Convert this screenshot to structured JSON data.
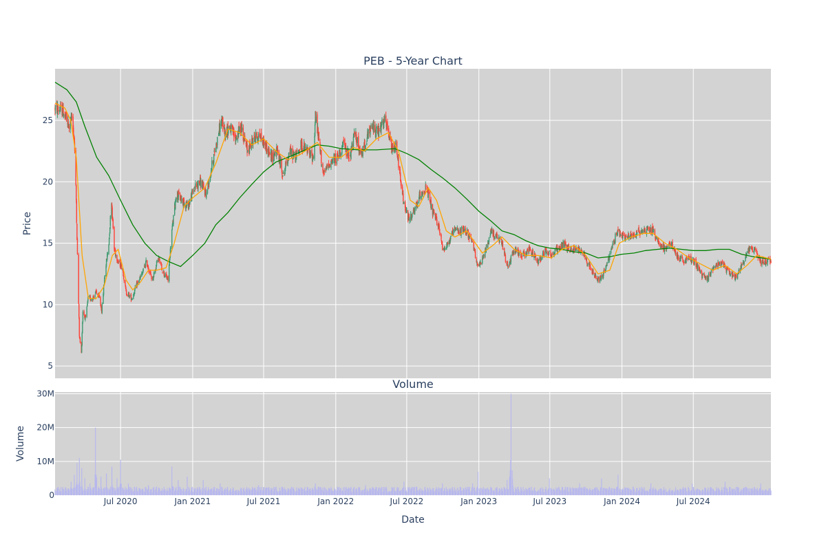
{
  "chart_data": [
    {
      "type": "candlestick",
      "title": "PEB - 5-Year Chart",
      "xlabel": "",
      "ylabel": "Price",
      "ylim": [
        4.0,
        29.2
      ],
      "xlim": [
        "2020-01-16",
        "2025-01-15"
      ],
      "yticks": [
        5,
        10,
        15,
        20,
        25
      ],
      "xtick_dates": [
        "2020-07-01",
        "2021-01-01",
        "2021-07-01",
        "2022-01-01",
        "2022-07-01",
        "2023-01-01",
        "2023-07-01",
        "2024-01-01",
        "2024-07-01"
      ],
      "grid": true,
      "background": "#d3d3d3",
      "colors": {
        "up": "#3d9970",
        "down": "#ff4136",
        "ma_short": "#ffa500",
        "ma_long": "#008000"
      },
      "price_path": [
        [
          "2020-01-16",
          26.0
        ],
        [
          "2020-02-05",
          25.8
        ],
        [
          "2020-02-20",
          24.5
        ],
        [
          "2020-02-28",
          25.2
        ],
        [
          "2020-03-05",
          23.5
        ],
        [
          "2020-03-10",
          18.5
        ],
        [
          "2020-03-13",
          14.0
        ],
        [
          "2020-03-18",
          7.5
        ],
        [
          "2020-03-23",
          6.0
        ],
        [
          "2020-03-27",
          9.5
        ],
        [
          "2020-04-03",
          8.8
        ],
        [
          "2020-04-09",
          10.5
        ],
        [
          "2020-04-20",
          10.5
        ],
        [
          "2020-04-30",
          11.0
        ],
        [
          "2020-05-08",
          10.5
        ],
        [
          "2020-05-14",
          9.5
        ],
        [
          "2020-05-22",
          12.5
        ],
        [
          "2020-06-01",
          15.0
        ],
        [
          "2020-06-08",
          18.5
        ],
        [
          "2020-06-15",
          14.5
        ],
        [
          "2020-06-25",
          13.5
        ],
        [
          "2020-07-06",
          13.0
        ],
        [
          "2020-07-15",
          11.0
        ],
        [
          "2020-07-30",
          10.5
        ],
        [
          "2020-08-10",
          11.5
        ],
        [
          "2020-08-25",
          12.5
        ],
        [
          "2020-09-05",
          13.5
        ],
        [
          "2020-09-20",
          12.0
        ],
        [
          "2020-10-05",
          13.8
        ],
        [
          "2020-10-20",
          12.5
        ],
        [
          "2020-10-30",
          12.0
        ],
        [
          "2020-11-09",
          16.0
        ],
        [
          "2020-11-20",
          19.0
        ],
        [
          "2020-12-05",
          18.5
        ],
        [
          "2020-12-20",
          18.0
        ],
        [
          "2021-01-05",
          19.5
        ],
        [
          "2021-01-20",
          20.0
        ],
        [
          "2021-02-05",
          19.0
        ],
        [
          "2021-02-20",
          21.5
        ],
        [
          "2021-03-05",
          23.5
        ],
        [
          "2021-03-15",
          25.0
        ],
        [
          "2021-03-25",
          24.0
        ],
        [
          "2021-04-05",
          24.5
        ],
        [
          "2021-04-20",
          23.5
        ],
        [
          "2021-05-05",
          24.5
        ],
        [
          "2021-05-20",
          22.5
        ],
        [
          "2021-06-05",
          23.5
        ],
        [
          "2021-06-20",
          23.8
        ],
        [
          "2021-07-05",
          23.0
        ],
        [
          "2021-07-20",
          22.0
        ],
        [
          "2021-08-05",
          22.5
        ],
        [
          "2021-08-20",
          20.5
        ],
        [
          "2021-09-05",
          22.5
        ],
        [
          "2021-09-20",
          22.0
        ],
        [
          "2021-10-05",
          23.0
        ],
        [
          "2021-10-20",
          22.5
        ],
        [
          "2021-11-05",
          22.0
        ],
        [
          "2021-11-10",
          25.5
        ],
        [
          "2021-11-20",
          23.0
        ],
        [
          "2021-12-01",
          20.5
        ],
        [
          "2021-12-15",
          21.5
        ],
        [
          "2022-01-05",
          22.0
        ],
        [
          "2022-01-20",
          23.0
        ],
        [
          "2022-02-05",
          22.0
        ],
        [
          "2022-02-20",
          24.0
        ],
        [
          "2022-03-05",
          22.0
        ],
        [
          "2022-03-20",
          23.5
        ],
        [
          "2022-04-05",
          24.5
        ],
        [
          "2022-04-20",
          24.0
        ],
        [
          "2022-05-05",
          25.0
        ],
        [
          "2022-05-15",
          24.0
        ],
        [
          "2022-05-25",
          22.5
        ],
        [
          "2022-06-05",
          23.0
        ],
        [
          "2022-06-15",
          20.0
        ],
        [
          "2022-06-25",
          18.0
        ],
        [
          "2022-07-05",
          17.0
        ],
        [
          "2022-07-20",
          17.5
        ],
        [
          "2022-08-05",
          19.0
        ],
        [
          "2022-08-20",
          19.5
        ],
        [
          "2022-09-05",
          17.5
        ],
        [
          "2022-09-20",
          16.5
        ],
        [
          "2022-10-01",
          14.5
        ],
        [
          "2022-10-15",
          15.0
        ],
        [
          "2022-10-30",
          16.0
        ],
        [
          "2022-11-15",
          16.0
        ],
        [
          "2022-11-30",
          16.0
        ],
        [
          "2022-12-15",
          15.0
        ],
        [
          "2023-01-01",
          13.0
        ],
        [
          "2023-01-15",
          14.0
        ],
        [
          "2023-02-01",
          16.0
        ],
        [
          "2023-02-15",
          15.5
        ],
        [
          "2023-03-01",
          15.0
        ],
        [
          "2023-03-15",
          13.0
        ],
        [
          "2023-04-01",
          14.5
        ],
        [
          "2023-04-20",
          14.0
        ],
        [
          "2023-05-10",
          14.5
        ],
        [
          "2023-06-01",
          13.5
        ],
        [
          "2023-06-20",
          14.5
        ],
        [
          "2023-07-05",
          14.0
        ],
        [
          "2023-07-20",
          14.5
        ],
        [
          "2023-08-05",
          15.0
        ],
        [
          "2023-08-20",
          14.5
        ],
        [
          "2023-09-05",
          14.5
        ],
        [
          "2023-09-20",
          14.5
        ],
        [
          "2023-10-05",
          13.5
        ],
        [
          "2023-10-20",
          12.5
        ],
        [
          "2023-11-01",
          12.0
        ],
        [
          "2023-11-15",
          12.5
        ],
        [
          "2023-12-01",
          14.0
        ],
        [
          "2023-12-20",
          16.0
        ],
        [
          "2024-01-05",
          15.5
        ],
        [
          "2024-01-20",
          15.5
        ],
        [
          "2024-02-05",
          15.8
        ],
        [
          "2024-02-20",
          16.0
        ],
        [
          "2024-03-05",
          16.2
        ],
        [
          "2024-03-20",
          16.0
        ],
        [
          "2024-04-05",
          15.0
        ],
        [
          "2024-04-20",
          14.5
        ],
        [
          "2024-05-05",
          15.0
        ],
        [
          "2024-05-20",
          14.0
        ],
        [
          "2024-06-05",
          13.5
        ],
        [
          "2024-06-20",
          13.8
        ],
        [
          "2024-07-05",
          13.5
        ],
        [
          "2024-07-20",
          12.5
        ],
        [
          "2024-08-05",
          12.0
        ],
        [
          "2024-08-20",
          13.0
        ],
        [
          "2024-09-05",
          13.5
        ],
        [
          "2024-09-20",
          13.0
        ],
        [
          "2024-10-05",
          12.5
        ],
        [
          "2024-10-20",
          12.2
        ],
        [
          "2024-11-05",
          13.5
        ],
        [
          "2024-11-20",
          14.5
        ],
        [
          "2024-12-05",
          14.5
        ],
        [
          "2024-12-20",
          13.5
        ],
        [
          "2025-01-15",
          13.6
        ]
      ],
      "ma_short": [
        [
          "2020-01-16",
          26.4
        ],
        [
          "2020-02-10",
          26.0
        ],
        [
          "2020-02-25",
          25.0
        ],
        [
          "2020-03-10",
          22.0
        ],
        [
          "2020-03-25",
          14.0
        ],
        [
          "2020-04-10",
          10.5
        ],
        [
          "2020-04-30",
          10.5
        ],
        [
          "2020-05-20",
          11.5
        ],
        [
          "2020-06-10",
          14.0
        ],
        [
          "2020-06-25",
          14.5
        ],
        [
          "2020-07-15",
          12.0
        ],
        [
          "2020-08-01",
          11.2
        ],
        [
          "2020-08-20",
          11.8
        ],
        [
          "2020-09-10",
          12.8
        ],
        [
          "2020-10-01",
          12.8
        ],
        [
          "2020-10-25",
          13.0
        ],
        [
          "2020-11-15",
          15.0
        ],
        [
          "2020-12-10",
          18.0
        ],
        [
          "2021-01-05",
          18.8
        ],
        [
          "2021-02-01",
          19.5
        ],
        [
          "2021-03-01",
          21.5
        ],
        [
          "2021-04-01",
          24.3
        ],
        [
          "2021-05-01",
          24.0
        ],
        [
          "2021-06-01",
          23.0
        ],
        [
          "2021-07-01",
          23.5
        ],
        [
          "2021-08-01",
          22.5
        ],
        [
          "2021-09-01",
          21.8
        ],
        [
          "2021-10-01",
          22.2
        ],
        [
          "2021-11-15",
          23.2
        ],
        [
          "2021-12-15",
          22.0
        ],
        [
          "2022-01-15",
          22.0
        ],
        [
          "2022-02-15",
          22.8
        ],
        [
          "2022-03-15",
          22.5
        ],
        [
          "2022-04-15",
          23.5
        ],
        [
          "2022-05-15",
          24.0
        ],
        [
          "2022-06-10",
          22.5
        ],
        [
          "2022-07-10",
          18.5
        ],
        [
          "2022-08-01",
          18.0
        ],
        [
          "2022-08-25",
          19.5
        ],
        [
          "2022-09-15",
          18.5
        ],
        [
          "2022-10-10",
          16.0
        ],
        [
          "2022-11-01",
          15.5
        ],
        [
          "2022-12-01",
          16.0
        ],
        [
          "2023-01-10",
          14.2
        ],
        [
          "2023-02-05",
          14.8
        ],
        [
          "2023-03-01",
          15.5
        ],
        [
          "2023-04-01",
          14.5
        ],
        [
          "2023-05-01",
          14.0
        ],
        [
          "2023-06-01",
          14.0
        ],
        [
          "2023-07-05",
          13.8
        ],
        [
          "2023-08-01",
          14.5
        ],
        [
          "2023-09-01",
          14.8
        ],
        [
          "2023-10-01",
          14.0
        ],
        [
          "2023-11-01",
          12.5
        ],
        [
          "2023-12-01",
          12.8
        ],
        [
          "2023-12-25",
          15.0
        ],
        [
          "2024-01-25",
          15.5
        ],
        [
          "2024-02-25",
          15.8
        ],
        [
          "2024-03-20",
          15.8
        ],
        [
          "2024-04-20",
          15.0
        ],
        [
          "2024-05-20",
          14.5
        ],
        [
          "2024-06-20",
          13.8
        ],
        [
          "2024-07-20",
          13.3
        ],
        [
          "2024-08-20",
          12.8
        ],
        [
          "2024-09-20",
          13.2
        ],
        [
          "2024-10-20",
          12.5
        ],
        [
          "2024-11-15",
          13.2
        ],
        [
          "2024-12-10",
          14.0
        ],
        [
          "2025-01-15",
          13.7
        ]
      ],
      "ma_long": [
        [
          "2020-01-16",
          28.1
        ],
        [
          "2020-02-15",
          27.5
        ],
        [
          "2020-03-10",
          26.5
        ],
        [
          "2020-04-01",
          24.5
        ],
        [
          "2020-05-01",
          22.0
        ],
        [
          "2020-06-01",
          20.5
        ],
        [
          "2020-07-01",
          18.5
        ],
        [
          "2020-08-01",
          16.5
        ],
        [
          "2020-09-01",
          15.0
        ],
        [
          "2020-10-01",
          14.0
        ],
        [
          "2020-11-01",
          13.5
        ],
        [
          "2020-12-01",
          13.1
        ],
        [
          "2021-01-01",
          14.0
        ],
        [
          "2021-02-01",
          15.0
        ],
        [
          "2021-03-01",
          16.5
        ],
        [
          "2021-04-01",
          17.5
        ],
        [
          "2021-05-01",
          18.7
        ],
        [
          "2021-06-01",
          19.8
        ],
        [
          "2021-07-01",
          20.8
        ],
        [
          "2021-08-01",
          21.6
        ],
        [
          "2021-09-01",
          22.0
        ],
        [
          "2021-10-01",
          22.4
        ],
        [
          "2021-11-15",
          23.0
        ],
        [
          "2021-12-15",
          22.9
        ],
        [
          "2022-01-15",
          22.7
        ],
        [
          "2022-03-01",
          22.6
        ],
        [
          "2022-04-15",
          22.6
        ],
        [
          "2022-06-01",
          22.7
        ],
        [
          "2022-07-01",
          22.3
        ],
        [
          "2022-08-01",
          21.8
        ],
        [
          "2022-09-01",
          21.0
        ],
        [
          "2022-10-01",
          20.3
        ],
        [
          "2022-11-01",
          19.5
        ],
        [
          "2022-12-01",
          18.6
        ],
        [
          "2023-01-01",
          17.6
        ],
        [
          "2023-02-01",
          16.8
        ],
        [
          "2023-03-01",
          16.0
        ],
        [
          "2023-04-01",
          15.7
        ],
        [
          "2023-05-01",
          15.2
        ],
        [
          "2023-06-01",
          14.8
        ],
        [
          "2023-07-01",
          14.6
        ],
        [
          "2023-08-01",
          14.5
        ],
        [
          "2023-09-01",
          14.3
        ],
        [
          "2023-10-01",
          14.2
        ],
        [
          "2023-11-01",
          13.8
        ],
        [
          "2023-12-01",
          13.9
        ],
        [
          "2024-01-01",
          14.1
        ],
        [
          "2024-02-01",
          14.2
        ],
        [
          "2024-03-01",
          14.4
        ],
        [
          "2024-04-01",
          14.5
        ],
        [
          "2024-05-01",
          14.6
        ],
        [
          "2024-06-01",
          14.5
        ],
        [
          "2024-07-01",
          14.4
        ],
        [
          "2024-08-01",
          14.4
        ],
        [
          "2024-09-01",
          14.5
        ],
        [
          "2024-10-01",
          14.5
        ],
        [
          "2024-11-01",
          14.1
        ],
        [
          "2024-12-01",
          13.9
        ],
        [
          "2025-01-15",
          13.7
        ]
      ]
    },
    {
      "type": "bar",
      "title": "Volume",
      "xlabel": "Date",
      "ylabel": "Volume",
      "ylim": [
        0,
        30500000
      ],
      "yticks": [
        0,
        10000000,
        20000000,
        30000000
      ],
      "ytick_labels": [
        "0",
        "10M",
        "20M",
        "30M"
      ],
      "xtick_labels": [
        "Jul 2020",
        "Jan 2021",
        "Jul 2021",
        "Jan 2022",
        "Jul 2022",
        "Jan 2023",
        "Jul 2023",
        "Jan 2024",
        "Jul 2024"
      ],
      "grid": true,
      "color": "#b8b8ee",
      "baseline": 1800000,
      "spikes": [
        [
          "2020-02-26",
          4000000
        ],
        [
          "2020-03-05",
          6000000
        ],
        [
          "2020-03-12",
          9500000
        ],
        [
          "2020-03-18",
          11000000
        ],
        [
          "2020-03-24",
          8000000
        ],
        [
          "2020-04-01",
          5000000
        ],
        [
          "2020-04-14",
          3500000
        ],
        [
          "2020-04-28",
          20000000
        ],
        [
          "2020-05-12",
          5500000
        ],
        [
          "2020-05-26",
          6500000
        ],
        [
          "2020-06-09",
          8500000
        ],
        [
          "2020-06-22",
          5000000
        ],
        [
          "2020-07-01",
          10500000
        ],
        [
          "2020-07-21",
          3500000
        ],
        [
          "2020-09-10",
          3000000
        ],
        [
          "2020-11-09",
          8500000
        ],
        [
          "2020-11-25",
          4500000
        ],
        [
          "2020-12-18",
          5500000
        ],
        [
          "2021-01-28",
          4500000
        ],
        [
          "2021-03-12",
          3500000
        ],
        [
          "2021-06-18",
          3000000
        ],
        [
          "2021-11-10",
          3500000
        ],
        [
          "2022-03-18",
          3000000
        ],
        [
          "2022-06-24",
          4000000
        ],
        [
          "2022-09-30",
          3500000
        ],
        [
          "2022-12-16",
          3500000
        ],
        [
          "2022-12-30",
          7000000
        ],
        [
          "2023-03-14",
          4500000
        ],
        [
          "2023-03-24",
          30000000
        ],
        [
          "2023-06-30",
          5000000
        ],
        [
          "2023-09-15",
          3500000
        ],
        [
          "2023-11-10",
          5000000
        ],
        [
          "2023-12-22",
          6000000
        ],
        [
          "2024-03-15",
          3500000
        ],
        [
          "2024-06-28",
          3500000
        ],
        [
          "2024-09-20",
          4000000
        ],
        [
          "2024-12-20",
          3500000
        ]
      ]
    }
  ]
}
